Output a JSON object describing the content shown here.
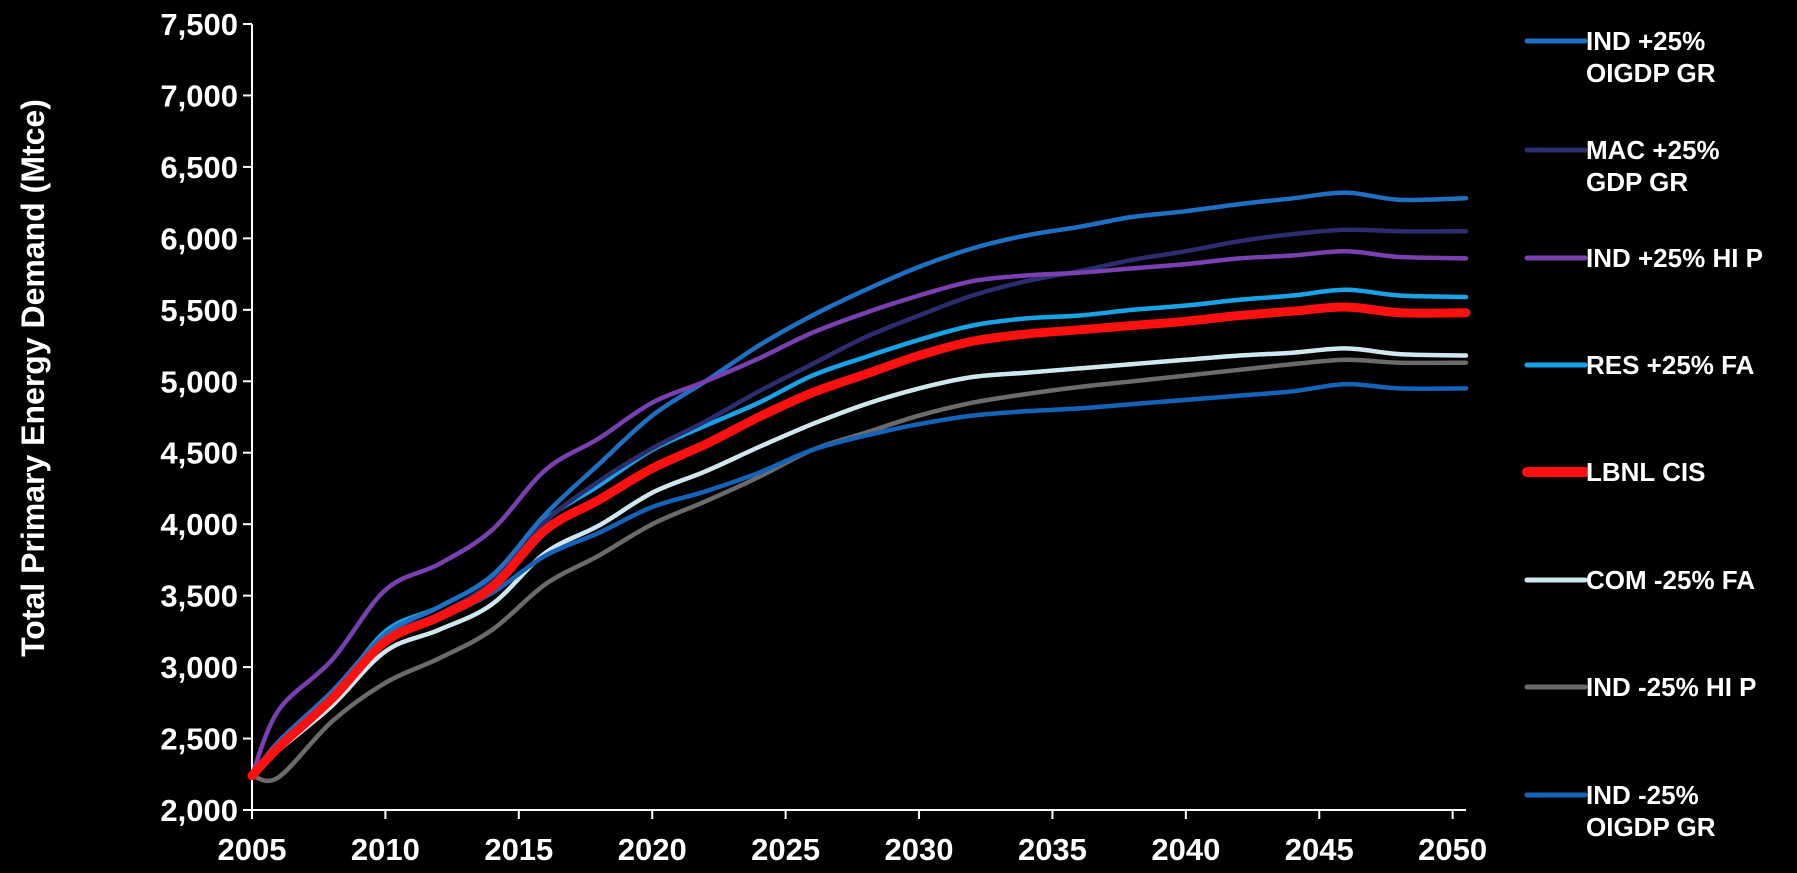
{
  "chart_data": {
    "type": "line",
    "title": "",
    "xlabel": "",
    "ylabel": "Total Primary Energy Demand (Mtce)",
    "xlim": [
      2005,
      2050.5
    ],
    "ylim": [
      2000,
      7500
    ],
    "x_ticks": [
      "2005",
      "2010",
      "2015",
      "2020",
      "2025",
      "2030",
      "2035",
      "2040",
      "2045",
      "2050"
    ],
    "y_ticks": [
      "2,000",
      "2,500",
      "3,000",
      "3,500",
      "4,000",
      "4,500",
      "5,000",
      "5,500",
      "6,000",
      "6,500",
      "7,000",
      "7,500"
    ],
    "grid": false,
    "legend_position": "right",
    "x": [
      2005,
      2006,
      2008,
      2010,
      2012,
      2014,
      2016,
      2018,
      2020,
      2022,
      2024,
      2026,
      2028,
      2030,
      2032,
      2034,
      2036,
      2038,
      2040,
      2042,
      2044,
      2046,
      2048,
      2050.5
    ],
    "series": [
      {
        "name": "IND +25% OIGDP GR",
        "name_lines": [
          "IND +25%",
          "OIGDP GR"
        ],
        "color": "#1f6fc2",
        "width": 4.5,
        "values": [
          2240,
          2480,
          2830,
          3230,
          3420,
          3640,
          4070,
          4420,
          4760,
          5000,
          5250,
          5460,
          5640,
          5800,
          5930,
          6020,
          6080,
          6150,
          6190,
          6240,
          6280,
          6320,
          6270,
          6280
        ]
      },
      {
        "name": "MAC +25% GDP GR",
        "name_lines": [
          "MAC +25%",
          "GDP GR"
        ],
        "color": "#2b2d6e",
        "width": 4.5,
        "values": [
          2240,
          2470,
          2820,
          3210,
          3370,
          3600,
          4020,
          4300,
          4530,
          4720,
          4930,
          5120,
          5310,
          5460,
          5600,
          5700,
          5770,
          5850,
          5910,
          5980,
          6030,
          6060,
          6050,
          6050
        ]
      },
      {
        "name": "IND +25% HI P",
        "name_lines": [
          "IND +25% HI P"
        ],
        "color": "#7a3fb0",
        "width": 4.5,
        "values": [
          2240,
          2700,
          3050,
          3540,
          3720,
          3960,
          4380,
          4600,
          4850,
          5000,
          5160,
          5340,
          5480,
          5600,
          5700,
          5740,
          5760,
          5790,
          5820,
          5860,
          5880,
          5910,
          5870,
          5860
        ]
      },
      {
        "name": "RES +25% FA",
        "name_lines": [
          "RES +25% FA"
        ],
        "color": "#19a3e6",
        "width": 4.5,
        "values": [
          2240,
          2470,
          2800,
          3250,
          3420,
          3640,
          4030,
          4270,
          4520,
          4690,
          4850,
          5040,
          5170,
          5290,
          5390,
          5440,
          5460,
          5500,
          5530,
          5570,
          5600,
          5640,
          5600,
          5590
        ]
      },
      {
        "name": "LBNL CIS",
        "name_lines": [
          "LBNL CIS"
        ],
        "color": "#ff1010",
        "width": 9,
        "values": [
          2240,
          2440,
          2780,
          3180,
          3350,
          3560,
          3960,
          4170,
          4390,
          4560,
          4750,
          4920,
          5050,
          5180,
          5280,
          5330,
          5360,
          5390,
          5420,
          5460,
          5490,
          5520,
          5480,
          5480
        ]
      },
      {
        "name": "COM -25% FA",
        "name_lines": [
          "COM -25% FA"
        ],
        "color": "#cfe7ef",
        "width": 4.5,
        "values": [
          2240,
          2420,
          2730,
          3110,
          3260,
          3440,
          3800,
          3990,
          4220,
          4370,
          4540,
          4700,
          4840,
          4950,
          5030,
          5060,
          5090,
          5120,
          5150,
          5180,
          5200,
          5230,
          5190,
          5180
        ]
      },
      {
        "name": "IND -25% HI P",
        "name_lines": [
          "IND -25% HI P"
        ],
        "color": "#6b6b6b",
        "width": 4.5,
        "values": [
          2240,
          2230,
          2620,
          2890,
          3060,
          3260,
          3580,
          3780,
          4000,
          4160,
          4330,
          4520,
          4640,
          4760,
          4850,
          4910,
          4960,
          5000,
          5040,
          5080,
          5120,
          5150,
          5130,
          5130
        ]
      },
      {
        "name": "IND -25% OIGDP GR",
        "name_lines": [
          "IND -25%",
          "OIGDP GR"
        ],
        "color": "#1563b8",
        "width": 4.5,
        "values": [
          2240,
          2450,
          2810,
          3200,
          3340,
          3520,
          3780,
          3940,
          4120,
          4230,
          4360,
          4520,
          4620,
          4700,
          4760,
          4790,
          4810,
          4840,
          4870,
          4900,
          4930,
          4980,
          4950,
          4950
        ]
      }
    ]
  }
}
